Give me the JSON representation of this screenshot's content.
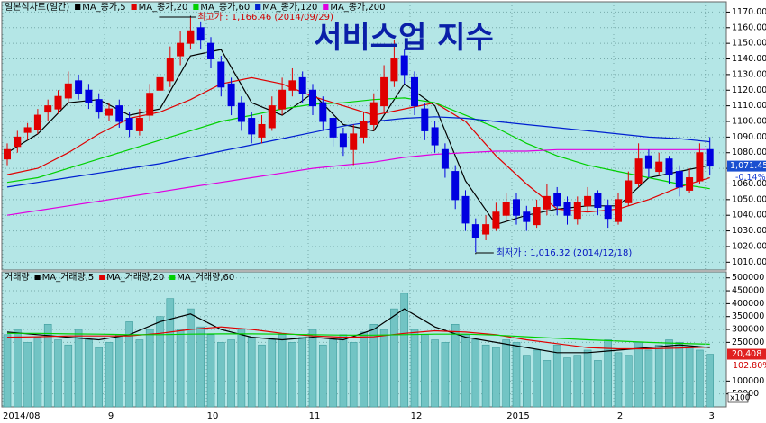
{
  "chart_data": [
    {
      "type": "candlestick",
      "title": "서비스업 지수",
      "legend_title": "일본식차트(일간)",
      "open": [
        1076,
        1084,
        1093,
        1095,
        1106,
        1108,
        1115,
        1126,
        1120,
        1114,
        1104,
        1110,
        1102,
        1094,
        1104,
        1120,
        1126,
        1142,
        1150,
        1160,
        1150,
        1138,
        1124,
        1112,
        1102,
        1090,
        1096,
        1108,
        1120,
        1128,
        1120,
        1112,
        1102,
        1092,
        1082,
        1090,
        1098,
        1110,
        1126,
        1142,
        1128,
        1108,
        1096,
        1082,
        1068,
        1052,
        1034,
        1028,
        1032,
        1040,
        1050,
        1042,
        1034,
        1044,
        1054,
        1048,
        1038,
        1046,
        1054,
        1046,
        1036,
        1048,
        1060,
        1078,
        1068,
        1076,
        1068,
        1056,
        1062,
        1082
      ],
      "high": [
        1086,
        1094,
        1099,
        1108,
        1114,
        1120,
        1132,
        1130,
        1124,
        1118,
        1112,
        1114,
        1106,
        1108,
        1124,
        1134,
        1148,
        1158,
        1166.46,
        1164,
        1154,
        1142,
        1128,
        1116,
        1106,
        1104,
        1116,
        1128,
        1134,
        1132,
        1124,
        1116,
        1106,
        1096,
        1098,
        1106,
        1118,
        1136,
        1152,
        1146,
        1132,
        1112,
        1100,
        1086,
        1072,
        1056,
        1038,
        1040,
        1048,
        1054,
        1054,
        1046,
        1050,
        1060,
        1058,
        1052,
        1052,
        1058,
        1056,
        1050,
        1054,
        1068,
        1086,
        1082,
        1080,
        1078,
        1072,
        1070,
        1086,
        1090
      ],
      "low": [
        1072,
        1080,
        1088,
        1092,
        1100,
        1105,
        1112,
        1114,
        1108,
        1102,
        1100,
        1096,
        1090,
        1091,
        1100,
        1116,
        1122,
        1136,
        1146,
        1146,
        1134,
        1116,
        1104,
        1094,
        1086,
        1086,
        1094,
        1104,
        1116,
        1112,
        1104,
        1094,
        1084,
        1078,
        1072,
        1086,
        1094,
        1106,
        1122,
        1124,
        1104,
        1088,
        1080,
        1064,
        1044,
        1030,
        1016.32,
        1024,
        1030,
        1036,
        1034,
        1030,
        1032,
        1040,
        1040,
        1034,
        1034,
        1042,
        1040,
        1032,
        1034,
        1046,
        1058,
        1064,
        1066,
        1060,
        1052,
        1054,
        1060,
        1066
      ],
      "close": [
        1082,
        1090,
        1096,
        1104,
        1110,
        1116,
        1124,
        1118,
        1112,
        1106,
        1108,
        1100,
        1095,
        1102,
        1118,
        1128,
        1140,
        1150,
        1158,
        1152,
        1140,
        1122,
        1110,
        1100,
        1092,
        1098,
        1110,
        1120,
        1126,
        1118,
        1110,
        1100,
        1090,
        1084,
        1092,
        1100,
        1112,
        1128,
        1140,
        1130,
        1110,
        1094,
        1085,
        1070,
        1050,
        1035,
        1026,
        1034,
        1042,
        1048,
        1040,
        1036,
        1045,
        1052,
        1046,
        1040,
        1048,
        1052,
        1045,
        1038,
        1050,
        1062,
        1076,
        1070,
        1074,
        1066,
        1058,
        1064,
        1080,
        1071.45
      ],
      "up_color": "#e00000",
      "down_color": "#0000e0",
      "lines": [
        {
          "name": "MA_종가,5",
          "color": "#000000",
          "x": [
            0,
            3,
            6,
            9,
            12,
            15,
            18,
            21,
            24,
            27,
            30,
            33,
            36,
            39,
            42,
            45,
            48,
            51,
            54,
            57,
            60,
            63,
            66,
            69
          ],
          "values": [
            1080,
            1092,
            1112,
            1114,
            1104,
            1108,
            1142,
            1146,
            1112,
            1104,
            1118,
            1098,
            1094,
            1124,
            1110,
            1062,
            1034,
            1040,
            1044,
            1046,
            1046,
            1064,
            1068,
            1072
          ]
        },
        {
          "name": "MA_종가,20",
          "color": "#e00000",
          "x": [
            0,
            3,
            6,
            9,
            12,
            15,
            18,
            21,
            24,
            27,
            30,
            33,
            36,
            39,
            42,
            45,
            48,
            51,
            54,
            57,
            60,
            63,
            66,
            69
          ],
          "values": [
            1066,
            1070,
            1080,
            1092,
            1102,
            1106,
            1114,
            1124,
            1128,
            1124,
            1116,
            1110,
            1104,
            1108,
            1112,
            1100,
            1078,
            1060,
            1044,
            1042,
            1044,
            1050,
            1058,
            1064
          ]
        },
        {
          "name": "MA_종가,60",
          "color": "#00d000",
          "x": [
            0,
            3,
            6,
            9,
            12,
            15,
            18,
            21,
            24,
            27,
            30,
            33,
            36,
            39,
            42,
            45,
            48,
            51,
            54,
            57,
            60,
            63,
            66,
            69
          ],
          "values": [
            1061,
            1064,
            1070,
            1076,
            1082,
            1088,
            1094,
            1100,
            1104,
            1108,
            1111,
            1112,
            1114,
            1115,
            1112,
            1104,
            1096,
            1086,
            1078,
            1072,
            1068,
            1064,
            1060,
            1057
          ]
        },
        {
          "name": "MA_종가,120",
          "color": "#0020d0",
          "x": [
            0,
            3,
            6,
            9,
            12,
            15,
            18,
            21,
            24,
            27,
            30,
            33,
            36,
            39,
            42,
            45,
            48,
            51,
            54,
            57,
            60,
            63,
            66,
            69
          ],
          "values": [
            1058,
            1061,
            1064,
            1067,
            1070,
            1073,
            1077,
            1081,
            1085,
            1089,
            1093,
            1097,
            1100,
            1102,
            1103,
            1102,
            1100,
            1098,
            1096,
            1094,
            1092,
            1090,
            1089,
            1087
          ]
        },
        {
          "name": "MA_종가,200",
          "color": "#e000e0",
          "x": [
            0,
            3,
            6,
            9,
            12,
            15,
            18,
            21,
            24,
            27,
            30,
            33,
            36,
            39,
            42,
            45,
            48,
            51,
            54,
            57,
            60,
            63,
            66,
            69
          ],
          "values": [
            1040,
            1043,
            1046,
            1049,
            1052,
            1055,
            1058,
            1061,
            1064,
            1067,
            1070,
            1072,
            1074,
            1077,
            1079,
            1080,
            1081,
            1081,
            1082,
            1082,
            1082,
            1082,
            1082,
            1082
          ]
        }
      ],
      "ylim": [
        1005,
        1176
      ],
      "yticks": [
        {
          "value": 1010,
          "label": "1010.00"
        },
        {
          "value": 1020,
          "label": "1020.00"
        },
        {
          "value": 1030,
          "label": "1030.00"
        },
        {
          "value": 1040,
          "label": "1040.00"
        },
        {
          "value": 1050,
          "label": "1050.00"
        },
        {
          "value": 1060,
          "label": "1060.00"
        },
        {
          "value": 1070,
          "label": "1070.00"
        },
        {
          "value": 1080,
          "label": "1080.00"
        },
        {
          "value": 1090,
          "label": "1090.00"
        },
        {
          "value": 1100,
          "label": "1100.00"
        },
        {
          "value": 1110,
          "label": "1110.00"
        },
        {
          "value": 1120,
          "label": "1120.00"
        },
        {
          "value": 1130,
          "label": "1130.00"
        },
        {
          "value": 1140,
          "label": "1140.00"
        },
        {
          "value": 1150,
          "label": "1150.00"
        },
        {
          "value": 1160,
          "label": "1160.00"
        },
        {
          "value": 1170,
          "label": "1170.00"
        }
      ],
      "grid": true,
      "annotations": {
        "high": "최고가 : 1,166.46 (2014/09/29)",
        "low": "최저가 : 1,016.32 (2014/12/18)"
      },
      "last_labels": [
        "1,071.45",
        "-0.14%"
      ]
    },
    {
      "type": "bar",
      "legend_title": "거래량",
      "categories": [
        "2014/08",
        null,
        null,
        null,
        null,
        null,
        null,
        null,
        null,
        null,
        "9",
        null,
        null,
        null,
        null,
        null,
        null,
        null,
        null,
        null,
        "10",
        null,
        null,
        null,
        null,
        null,
        null,
        null,
        null,
        null,
        "11",
        null,
        null,
        null,
        null,
        null,
        null,
        null,
        null,
        null,
        "12",
        null,
        null,
        null,
        null,
        null,
        null,
        null,
        null,
        null,
        "2015",
        null,
        null,
        null,
        null,
        null,
        null,
        null,
        null,
        null,
        "2",
        null,
        null,
        null,
        null,
        null,
        null,
        null,
        null,
        "3"
      ],
      "values": [
        280000,
        300000,
        250000,
        270000,
        320000,
        260000,
        240000,
        300000,
        260000,
        230000,
        250000,
        280000,
        330000,
        260000,
        300000,
        350000,
        420000,
        300000,
        380000,
        310000,
        280000,
        250000,
        260000,
        300000,
        270000,
        240000,
        260000,
        280000,
        250000,
        270000,
        300000,
        240000,
        260000,
        280000,
        250000,
        290000,
        320000,
        300000,
        380000,
        440000,
        300000,
        280000,
        260000,
        250000,
        320000,
        280000,
        260000,
        240000,
        230000,
        260000,
        250000,
        200000,
        220000,
        180000,
        240000,
        190000,
        200000,
        220000,
        180000,
        260000,
        210000,
        200000,
        250000,
        220000,
        240000,
        260000,
        250000,
        230000,
        220000,
        204080
      ],
      "color": "#72c4c4",
      "lines": [
        {
          "name": "MA_거래량,5",
          "color": "#000000",
          "x": [
            0,
            3,
            6,
            9,
            12,
            15,
            18,
            21,
            24,
            27,
            30,
            33,
            36,
            39,
            42,
            45,
            48,
            51,
            54,
            57,
            60,
            63,
            66,
            69
          ],
          "values": [
            290000,
            280000,
            270000,
            260000,
            280000,
            330000,
            360000,
            300000,
            270000,
            260000,
            270000,
            260000,
            300000,
            380000,
            310000,
            270000,
            250000,
            230000,
            210000,
            210000,
            220000,
            230000,
            240000,
            230000
          ]
        },
        {
          "name": "MA_거래량,20",
          "color": "#e00000",
          "x": [
            0,
            3,
            6,
            9,
            12,
            15,
            18,
            21,
            24,
            27,
            30,
            33,
            36,
            39,
            42,
            45,
            48,
            51,
            54,
            57,
            60,
            63,
            66,
            69
          ],
          "values": [
            270000,
            272000,
            275000,
            275000,
            275000,
            285000,
            300000,
            310000,
            300000,
            285000,
            275000,
            270000,
            272000,
            285000,
            295000,
            290000,
            280000,
            260000,
            245000,
            230000,
            225000,
            225000,
            228000,
            232000
          ]
        },
        {
          "name": "MA_거래량,60",
          "color": "#00d000",
          "x": [
            0,
            3,
            6,
            9,
            12,
            15,
            18,
            21,
            24,
            27,
            30,
            33,
            36,
            39,
            42,
            45,
            48,
            51,
            54,
            57,
            60,
            63,
            66,
            69
          ],
          "values": [
            285000,
            285000,
            283000,
            282000,
            280000,
            280000,
            282000,
            283000,
            283000,
            282000,
            280000,
            278000,
            278000,
            280000,
            282000,
            282000,
            278000,
            272000,
            266000,
            260000,
            255000,
            250000,
            246000,
            243000
          ]
        }
      ],
      "ylim": [
        0,
        520000
      ],
      "yticks": [
        50000,
        100000,
        250000,
        300000,
        350000,
        400000,
        450000,
        500000
      ],
      "y_unit_label": "x100",
      "last_labels": [
        "20,408",
        "102.80%"
      ]
    }
  ]
}
